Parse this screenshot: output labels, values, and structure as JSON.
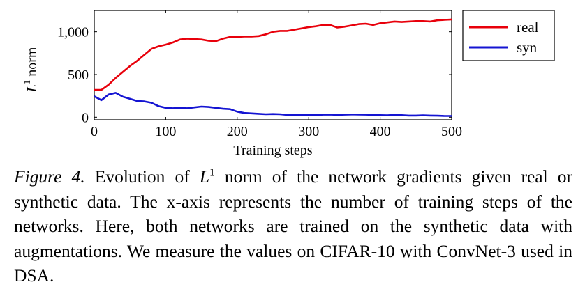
{
  "chart_data": {
    "type": "line",
    "xlabel": "Training steps",
    "ylabel": {
      "symbol": "L",
      "superscript": "1",
      "word": "norm"
    },
    "xlim": [
      0,
      500
    ],
    "ylim": [
      -30,
      1250
    ],
    "xticks": [
      {
        "value": 0,
        "label": "0"
      },
      {
        "value": 100,
        "label": "100"
      },
      {
        "value": 200,
        "label": "200"
      },
      {
        "value": 300,
        "label": "300"
      },
      {
        "value": 400,
        "label": "400"
      },
      {
        "value": 500,
        "label": "500"
      }
    ],
    "yticks": [
      {
        "value": 0,
        "label": "0"
      },
      {
        "value": 500,
        "label": "500"
      },
      {
        "value": 1000,
        "label": "1,000"
      }
    ],
    "grid": false,
    "legend_position": "outside-right-top",
    "series": [
      {
        "name": "real",
        "color": "#e8000b",
        "x": [
          0,
          10,
          20,
          30,
          40,
          50,
          60,
          70,
          80,
          90,
          100,
          110,
          120,
          130,
          140,
          150,
          160,
          170,
          180,
          190,
          200,
          210,
          220,
          230,
          240,
          250,
          260,
          270,
          280,
          290,
          300,
          310,
          320,
          330,
          340,
          350,
          360,
          370,
          380,
          390,
          400,
          410,
          420,
          430,
          440,
          450,
          460,
          470,
          480,
          490,
          500
        ],
        "values": [
          320,
          320,
          380,
          460,
          530,
          600,
          660,
          730,
          800,
          830,
          850,
          875,
          910,
          920,
          915,
          910,
          895,
          890,
          920,
          940,
          940,
          945,
          945,
          950,
          970,
          1000,
          1010,
          1010,
          1025,
          1040,
          1055,
          1065,
          1080,
          1080,
          1050,
          1060,
          1075,
          1090,
          1095,
          1080,
          1100,
          1110,
          1120,
          1115,
          1120,
          1125,
          1125,
          1120,
          1135,
          1140,
          1145
        ]
      },
      {
        "name": "syn",
        "color": "#1414d2",
        "x": [
          0,
          10,
          20,
          30,
          40,
          50,
          60,
          70,
          80,
          90,
          100,
          110,
          120,
          130,
          140,
          150,
          160,
          170,
          180,
          190,
          200,
          210,
          220,
          230,
          240,
          250,
          260,
          270,
          280,
          290,
          300,
          310,
          320,
          330,
          340,
          350,
          360,
          370,
          380,
          390,
          400,
          410,
          420,
          430,
          440,
          450,
          460,
          470,
          480,
          490,
          500
        ],
        "values": [
          245,
          200,
          265,
          285,
          240,
          215,
          190,
          185,
          170,
          130,
          110,
          105,
          110,
          105,
          115,
          125,
          120,
          110,
          100,
          95,
          65,
          50,
          45,
          40,
          35,
          38,
          35,
          28,
          25,
          25,
          28,
          25,
          30,
          32,
          28,
          30,
          33,
          32,
          30,
          28,
          25,
          22,
          28,
          25,
          20,
          20,
          22,
          20,
          18,
          15,
          15
        ]
      }
    ]
  },
  "caption": {
    "figure_label": "Figure 4.",
    "text_before_math": "Evolution of",
    "math_symbol": "L",
    "math_superscript": "1",
    "text_after_math": "norm of the network gradients given real or synthetic data. The x-axis represents the number of training steps of the networks. Here, both networks are trained on the synthetic data with augmentations. We measure the values on CIFAR-10 with ConvNet-3 used in DSA."
  }
}
